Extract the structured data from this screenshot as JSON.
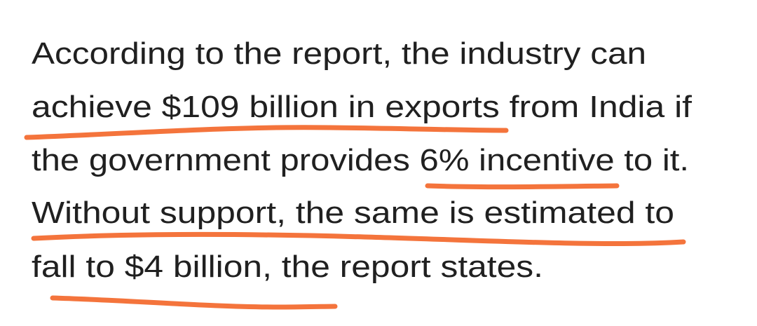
{
  "paragraph": {
    "lines": [
      "According to the report, the industry can",
      "achieve $109 billion in exports from India if",
      "the government provides 6% incentive to it.",
      "Without support, the same is estimated to",
      "fall to $4 billion, the report states."
    ]
  }
}
